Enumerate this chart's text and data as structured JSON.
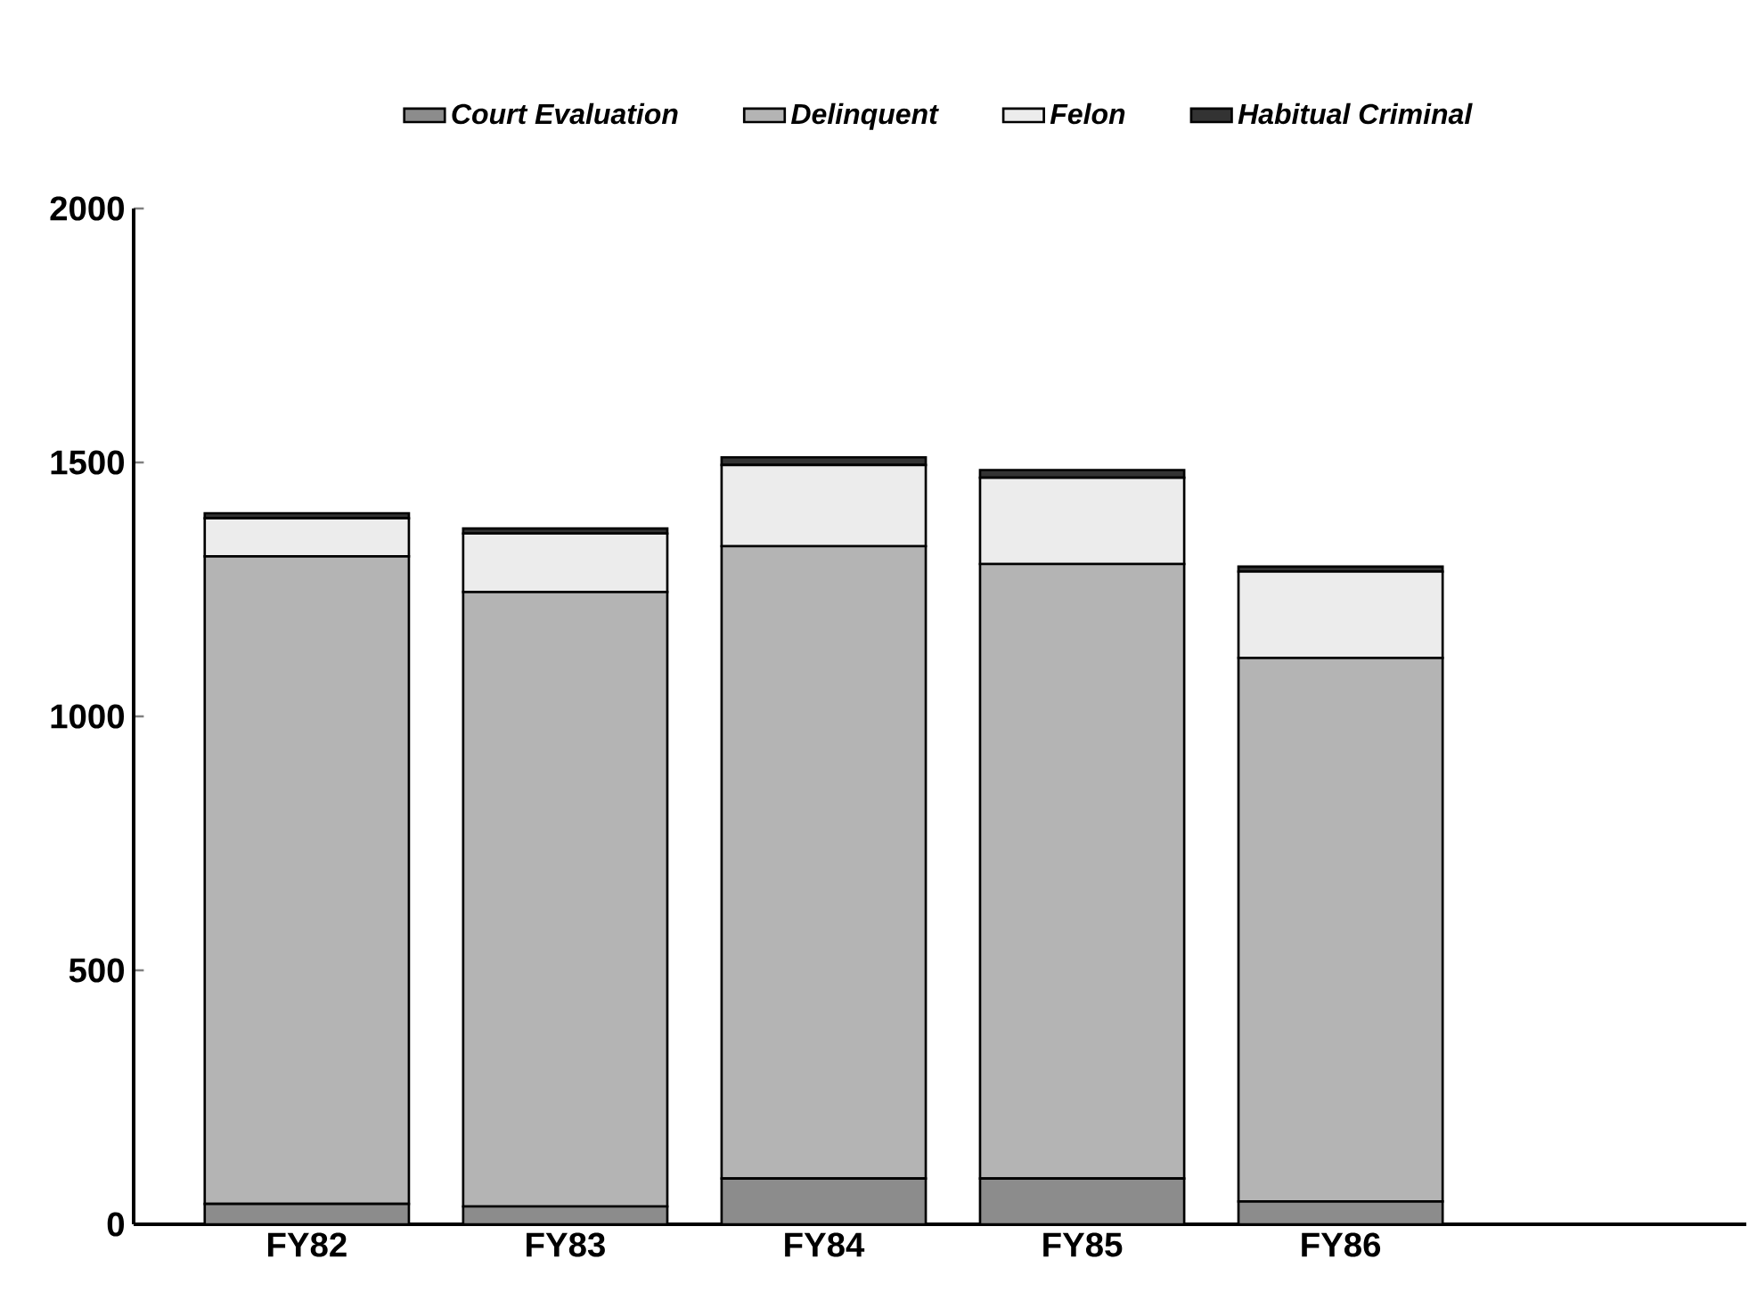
{
  "chart_data": {
    "type": "bar",
    "stacked": true,
    "categories": [
      "FY82",
      "FY83",
      "FY84",
      "FY85",
      "FY86"
    ],
    "series": [
      {
        "name": "Court Evaluation",
        "color": "#8c8c8c",
        "values": [
          40,
          35,
          90,
          90,
          45
        ]
      },
      {
        "name": "Delinquent",
        "color": "#b4b4b4",
        "values": [
          1275,
          1210,
          1245,
          1210,
          1070
        ]
      },
      {
        "name": "Felon",
        "color": "#ececec",
        "values": [
          75,
          115,
          160,
          170,
          170
        ]
      },
      {
        "name": "Habitual Criminal",
        "color": "#333333",
        "values": [
          10,
          10,
          15,
          15,
          10
        ]
      }
    ],
    "ylim": [
      0,
      2000
    ],
    "yticks": [
      0,
      500,
      1000,
      1500,
      2000
    ],
    "grid": false,
    "legend": "top"
  }
}
